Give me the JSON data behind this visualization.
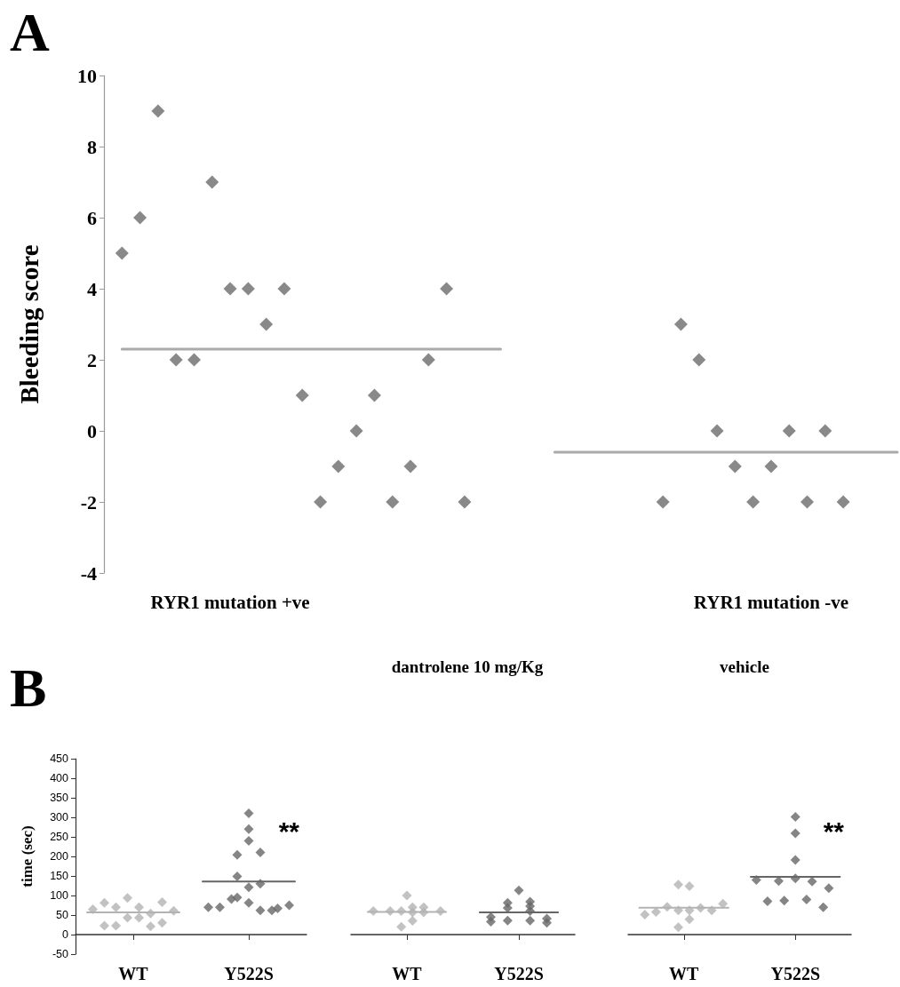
{
  "chart_data": [
    {
      "type": "scatter",
      "title": "A",
      "ylabel": "Bleeding score",
      "marker": "diamond",
      "grid": false,
      "categories": [
        null,
        null,
        null,
        null,
        null,
        null,
        null,
        "RYR1 mutation +ve",
        null,
        null,
        null,
        null,
        null,
        null,
        null,
        null,
        null,
        null,
        null,
        null,
        null,
        null,
        null,
        null,
        null,
        null,
        null,
        null,
        null,
        null,
        null,
        null,
        null,
        null,
        null,
        null,
        null,
        "RYR1 mutation -ve",
        null,
        null,
        null,
        null,
        null,
        null,
        null
      ],
      "ylim": [
        -4,
        10
      ],
      "yticks": [
        -4,
        -2,
        0,
        2,
        4,
        6,
        8,
        10
      ],
      "series": [
        {
          "color": "#6b6b6b",
          "values": [
            null,
            5,
            6,
            9,
            2,
            2,
            7,
            4,
            4,
            3,
            4,
            1,
            -2,
            -1,
            0,
            1,
            -2,
            -1,
            2,
            4,
            -2,
            null,
            null,
            null,
            null,
            null,
            null,
            null,
            null,
            null,
            null,
            -2,
            3,
            2,
            0,
            -1,
            -2,
            -1,
            0,
            -2,
            0,
            -2,
            null,
            null,
            null
          ]
        },
        {
          "type": "line",
          "marker": "none",
          "color": "#aaaaaa",
          "values": [
            null,
            2.3,
            2.3,
            2.3,
            2.3,
            2.3,
            2.3,
            2.3,
            2.3,
            2.3,
            2.3,
            2.3,
            2.3,
            2.3,
            2.3,
            2.3,
            2.3,
            2.3,
            2.3,
            2.3,
            2.3,
            2.3,
            2.3,
            null,
            null,
            null,
            null,
            null,
            null,
            null,
            null,
            null,
            null,
            null,
            null,
            null,
            null,
            null,
            null,
            null,
            null,
            null,
            null,
            null,
            null
          ]
        },
        {
          "type": "line",
          "marker": "none",
          "color": "#aaaaaa",
          "values": [
            null,
            null,
            null,
            null,
            null,
            null,
            null,
            null,
            null,
            null,
            null,
            null,
            null,
            null,
            null,
            null,
            null,
            null,
            null,
            null,
            null,
            null,
            null,
            null,
            null,
            -0.6,
            -0.6,
            -0.6,
            -0.6,
            -0.6,
            -0.6,
            -0.6,
            -0.6,
            -0.6,
            -0.6,
            -0.6,
            -0.6,
            -0.6,
            -0.6,
            -0.6,
            -0.6,
            -0.6,
            -0.6,
            -0.6,
            -0.6
          ]
        }
      ]
    },
    {
      "type": "scatter",
      "title": "B",
      "ylabel": "time (sec)",
      "marker": "diamond",
      "grid": false,
      "categories": [
        null,
        null,
        null,
        null,
        null,
        null,
        null,
        null,
        null,
        null,
        "WT",
        null,
        null,
        null,
        null,
        null,
        null,
        null,
        null,
        null,
        null,
        null,
        null,
        null,
        null,
        null,
        null,
        null,
        null,
        null,
        "Y522S",
        null,
        null,
        null,
        null,
        null,
        null,
        null,
        null,
        null,
        null
      ],
      "ylim": [
        -50,
        450
      ],
      "yticks": [
        -50,
        0,
        50,
        100,
        150,
        200,
        250,
        300,
        350,
        400,
        450
      ],
      "annotations": [
        "**"
      ],
      "series": [
        {
          "color": "#b3b3b3",
          "values": [
            null,
            null,
            null,
            65,
            null,
            81,
            null,
            70,
            null,
            94,
            null,
            70,
            null,
            54,
            null,
            83,
            null,
            61,
            null,
            null,
            null,
            null,
            null,
            null,
            null,
            null,
            null,
            null,
            null,
            null,
            null,
            null,
            null,
            null,
            null,
            null,
            null,
            null,
            null,
            null,
            null
          ]
        },
        {
          "color": "#b3b3b3",
          "values": [
            null,
            null,
            null,
            null,
            null,
            23,
            null,
            23,
            null,
            43,
            null,
            43,
            null,
            21,
            null,
            30,
            null,
            null,
            null,
            null,
            null,
            null,
            null,
            null,
            null,
            null,
            null,
            null,
            null,
            null,
            null,
            null,
            null,
            null,
            null,
            null,
            null,
            null,
            null,
            null,
            null
          ]
        },
        {
          "color": "#666666",
          "values": [
            null,
            null,
            null,
            null,
            null,
            null,
            null,
            null,
            null,
            null,
            null,
            null,
            null,
            null,
            null,
            null,
            null,
            null,
            null,
            null,
            null,
            null,
            null,
            70,
            null,
            70,
            null,
            91,
            95,
            null,
            310,
            null,
            210,
            null,
            62,
            67,
            null,
            75,
            null,
            null,
            null
          ]
        },
        {
          "color": "#666666",
          "values": [
            null,
            null,
            null,
            null,
            null,
            null,
            null,
            null,
            null,
            null,
            null,
            null,
            null,
            null,
            null,
            null,
            null,
            null,
            null,
            null,
            null,
            null,
            null,
            null,
            null,
            null,
            null,
            null,
            149,
            null,
            270,
            null,
            130,
            null,
            null,
            null,
            null,
            null,
            null,
            null,
            null
          ]
        },
        {
          "color": "#666666",
          "values": [
            null,
            null,
            null,
            null,
            null,
            null,
            null,
            null,
            null,
            null,
            null,
            null,
            null,
            null,
            null,
            null,
            null,
            null,
            null,
            null,
            null,
            null,
            null,
            null,
            null,
            null,
            null,
            null,
            204,
            null,
            240,
            null,
            62,
            null,
            null,
            null,
            null,
            null,
            null,
            null,
            null
          ]
        },
        {
          "color": "#666666",
          "values": [
            null,
            null,
            null,
            null,
            null,
            null,
            null,
            null,
            null,
            null,
            null,
            null,
            null,
            null,
            null,
            null,
            null,
            null,
            null,
            null,
            null,
            null,
            null,
            null,
            null,
            null,
            null,
            null,
            null,
            null,
            121,
            null,
            null,
            null,
            null,
            null,
            null,
            null,
            null,
            null,
            null
          ]
        },
        {
          "color": "#666666",
          "values": [
            null,
            null,
            null,
            null,
            null,
            null,
            null,
            null,
            null,
            null,
            null,
            null,
            null,
            null,
            null,
            null,
            null,
            null,
            null,
            null,
            null,
            null,
            null,
            null,
            null,
            null,
            null,
            null,
            null,
            null,
            81,
            null,
            null,
            null,
            null,
            null,
            null,
            null,
            null,
            null,
            null
          ]
        },
        {
          "type": "line",
          "marker": "none",
          "color": "#b3b3b3",
          "values": [
            null,
            null,
            57,
            57,
            57,
            57,
            57,
            57,
            57,
            57,
            57,
            57,
            57,
            57,
            57,
            57,
            57,
            57,
            57,
            null,
            null,
            null,
            null,
            null,
            null,
            null,
            null,
            null,
            null,
            null,
            null,
            null,
            null,
            null,
            null,
            null,
            null,
            null,
            null,
            null,
            null
          ]
        },
        {
          "type": "line",
          "color": "#666666",
          "values": [
            null,
            null,
            null,
            null,
            null,
            null,
            null,
            null,
            null,
            null,
            null,
            null,
            null,
            null,
            null,
            null,
            null,
            null,
            null,
            null,
            null,
            null,
            136,
            136,
            136,
            136,
            136,
            136,
            136,
            136,
            136,
            136,
            136,
            136,
            136,
            136,
            136,
            136,
            136,
            null,
            null
          ],
          "marker": "none"
        }
      ]
    },
    {
      "type": "scatter",
      "title": "dantrolene 10 mg/Kg",
      "marker": "diamond",
      "grid": false,
      "tick_labels": "x",
      "categories": [
        null,
        null,
        null,
        null,
        null,
        null,
        null,
        null,
        null,
        null,
        "WT",
        null,
        null,
        null,
        null,
        null,
        null,
        null,
        null,
        null,
        null,
        null,
        null,
        null,
        null,
        null,
        null,
        null,
        null,
        null,
        "Y522S",
        null,
        null,
        null,
        null,
        null,
        null,
        null,
        null,
        null,
        null
      ],
      "ylim": [
        -50,
        450
      ],
      "series": [
        {
          "color": "#b3b3b3",
          "values": [
            null,
            null,
            null,
            null,
            60,
            null,
            null,
            60,
            null,
            60,
            100,
            70,
            null,
            70,
            null,
            null,
            60,
            null,
            null,
            null,
            null,
            null,
            null,
            null,
            null,
            null,
            null,
            null,
            null,
            null,
            null,
            null,
            null,
            null,
            null,
            null,
            null,
            null,
            null,
            null,
            null
          ]
        },
        {
          "color": "#b3b3b3",
          "values": [
            null,
            null,
            null,
            null,
            null,
            null,
            null,
            null,
            null,
            20,
            null,
            57,
            null,
            57,
            null,
            null,
            null,
            null,
            null,
            null,
            null,
            null,
            null,
            null,
            null,
            null,
            null,
            null,
            null,
            null,
            null,
            null,
            null,
            null,
            null,
            null,
            null,
            null,
            null,
            null,
            null
          ]
        },
        {
          "color": "#b3b3b3",
          "values": [
            null,
            null,
            null,
            null,
            null,
            null,
            null,
            null,
            null,
            null,
            null,
            35,
            null,
            null,
            null,
            null,
            null,
            null,
            null,
            null,
            null,
            null,
            null,
            null,
            null,
            null,
            null,
            null,
            null,
            null,
            null,
            null,
            null,
            null,
            null,
            null,
            null,
            null,
            null,
            null,
            null
          ]
        },
        {
          "color": "#666666",
          "values": [
            null,
            null,
            null,
            null,
            null,
            null,
            null,
            null,
            null,
            null,
            null,
            null,
            null,
            null,
            null,
            null,
            null,
            null,
            null,
            null,
            null,
            null,
            null,
            null,
            null,
            45,
            null,
            null,
            81,
            null,
            113,
            null,
            84,
            null,
            null,
            41,
            null,
            null,
            null,
            null,
            null
          ]
        },
        {
          "color": "#666666",
          "values": [
            null,
            null,
            null,
            null,
            null,
            null,
            null,
            null,
            null,
            null,
            null,
            null,
            null,
            null,
            null,
            null,
            null,
            null,
            null,
            null,
            null,
            null,
            null,
            null,
            null,
            33,
            null,
            null,
            68,
            null,
            null,
            null,
            73,
            null,
            null,
            30,
            null,
            null,
            null,
            null,
            null
          ]
        },
        {
          "color": "#666666",
          "values": [
            null,
            null,
            null,
            null,
            null,
            null,
            null,
            null,
            null,
            null,
            null,
            null,
            null,
            null,
            null,
            null,
            null,
            null,
            null,
            null,
            null,
            null,
            null,
            null,
            null,
            null,
            null,
            null,
            36,
            null,
            null,
            null,
            60,
            null,
            null,
            null,
            null,
            null,
            null,
            null,
            null
          ]
        },
        {
          "color": "#666666",
          "values": [
            null,
            null,
            null,
            null,
            null,
            null,
            null,
            null,
            null,
            null,
            null,
            null,
            null,
            null,
            null,
            null,
            null,
            null,
            null,
            null,
            null,
            null,
            null,
            null,
            null,
            null,
            null,
            null,
            null,
            null,
            null,
            null,
            36,
            null,
            null,
            null,
            null,
            null,
            null,
            null,
            null
          ]
        },
        {
          "type": "line",
          "marker": "none",
          "color": "#b3b3b3",
          "values": [
            null,
            null,
            null,
            58,
            58,
            58,
            58,
            58,
            58,
            58,
            58,
            58,
            58,
            58,
            58,
            58,
            58,
            58,
            null,
            null,
            null,
            null,
            null,
            null,
            null,
            null,
            null,
            null,
            null,
            null,
            null,
            null,
            null,
            null,
            null,
            null,
            null,
            null,
            null,
            null,
            null
          ]
        },
        {
          "type": "line",
          "color": "#666666",
          "values": [
            null,
            null,
            null,
            null,
            null,
            null,
            null,
            null,
            null,
            null,
            null,
            null,
            null,
            null,
            null,
            null,
            null,
            null,
            null,
            null,
            null,
            null,
            null,
            57,
            57,
            57,
            57,
            57,
            57,
            57,
            57,
            57,
            57,
            57,
            57,
            57,
            57,
            57,
            null,
            null,
            null
          ],
          "marker": "none"
        }
      ]
    },
    {
      "type": "scatter",
      "title": "vehicle",
      "marker": "diamond",
      "grid": false,
      "tick_labels": "x",
      "categories": [
        null,
        null,
        null,
        null,
        null,
        null,
        null,
        null,
        null,
        null,
        "WT",
        null,
        null,
        null,
        null,
        null,
        null,
        null,
        null,
        null,
        null,
        null,
        null,
        null,
        null,
        null,
        null,
        null,
        null,
        null,
        "Y522S",
        null,
        null,
        null,
        null,
        null,
        null,
        null,
        null,
        null,
        null
      ],
      "ylim": [
        -50,
        450
      ],
      "annotations": [
        "**"
      ],
      "series": [
        {
          "color": "#b3b3b3",
          "values": [
            null,
            null,
            null,
            51,
            null,
            58,
            null,
            71,
            null,
            128,
            null,
            124,
            null,
            68,
            null,
            62,
            null,
            79,
            null,
            null,
            null,
            null,
            null,
            null,
            null,
            null,
            null,
            null,
            null,
            null,
            null,
            null,
            null,
            null,
            null,
            null,
            null,
            null,
            null,
            null,
            null
          ]
        },
        {
          "color": "#b3b3b3",
          "values": [
            null,
            null,
            null,
            null,
            null,
            null,
            null,
            null,
            null,
            62,
            null,
            62,
            null,
            null,
            null,
            null,
            null,
            null,
            null,
            null,
            null,
            null,
            null,
            null,
            null,
            null,
            null,
            null,
            null,
            null,
            null,
            null,
            null,
            null,
            null,
            null,
            null,
            null,
            null,
            null,
            null
          ]
        },
        {
          "color": "#b3b3b3",
          "values": [
            null,
            null,
            null,
            null,
            null,
            null,
            null,
            null,
            null,
            19,
            null,
            39,
            null,
            null,
            null,
            null,
            null,
            null,
            null,
            null,
            null,
            null,
            null,
            null,
            null,
            null,
            null,
            null,
            null,
            null,
            null,
            null,
            null,
            null,
            null,
            null,
            null,
            null,
            null,
            null,
            null
          ]
        },
        {
          "color": "#666666",
          "values": [
            null,
            null,
            null,
            null,
            null,
            null,
            null,
            null,
            null,
            null,
            null,
            null,
            null,
            null,
            null,
            null,
            null,
            null,
            null,
            null,
            null,
            null,
            null,
            140,
            null,
            85,
            null,
            137,
            87,
            null,
            301,
            null,
            90,
            136,
            null,
            70,
            119,
            null,
            null,
            null,
            null
          ]
        },
        {
          "color": "#666666",
          "values": [
            null,
            null,
            null,
            null,
            null,
            null,
            null,
            null,
            null,
            null,
            null,
            null,
            null,
            null,
            null,
            null,
            null,
            null,
            null,
            null,
            null,
            null,
            null,
            null,
            null,
            null,
            null,
            null,
            null,
            null,
            259,
            null,
            null,
            null,
            null,
            null,
            null,
            null,
            null,
            null,
            null
          ]
        },
        {
          "color": "#666666",
          "values": [
            null,
            null,
            null,
            null,
            null,
            null,
            null,
            null,
            null,
            null,
            null,
            null,
            null,
            null,
            null,
            null,
            null,
            null,
            null,
            null,
            null,
            null,
            null,
            null,
            null,
            null,
            null,
            null,
            null,
            null,
            191,
            null,
            null,
            null,
            null,
            null,
            null,
            null,
            null,
            null,
            null
          ]
        },
        {
          "color": "#666666",
          "values": [
            null,
            null,
            null,
            null,
            null,
            null,
            null,
            null,
            null,
            null,
            null,
            null,
            null,
            null,
            null,
            null,
            null,
            null,
            null,
            null,
            null,
            null,
            null,
            null,
            null,
            null,
            null,
            null,
            null,
            null,
            144,
            null,
            null,
            null,
            null,
            null,
            null,
            null,
            null,
            null,
            null
          ]
        },
        {
          "type": "line",
          "marker": "none",
          "color": "#b3b3b3",
          "values": [
            null,
            null,
            69,
            69,
            69,
            69,
            69,
            69,
            69,
            69,
            69,
            69,
            69,
            69,
            69,
            69,
            69,
            69,
            69,
            null,
            null,
            null,
            null,
            null,
            null,
            null,
            null,
            null,
            null,
            null,
            null,
            null,
            null,
            null,
            null,
            null,
            null,
            null,
            null,
            null,
            null
          ]
        },
        {
          "type": "line",
          "color": "#666666",
          "values": [
            null,
            null,
            null,
            null,
            null,
            null,
            null,
            null,
            null,
            null,
            null,
            null,
            null,
            null,
            null,
            null,
            null,
            null,
            null,
            null,
            null,
            null,
            148,
            148,
            148,
            148,
            148,
            148,
            148,
            148,
            148,
            148,
            148,
            148,
            148,
            148,
            148,
            148,
            148,
            null,
            null
          ],
          "marker": "none"
        }
      ]
    }
  ]
}
